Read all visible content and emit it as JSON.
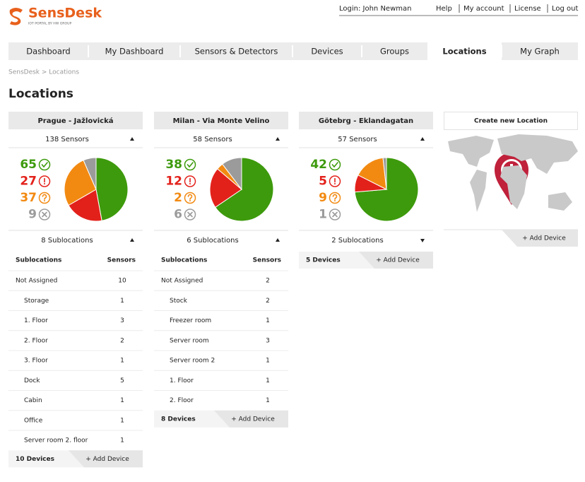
{
  "header": {
    "logo": "SensDesk",
    "tagline": "IOT PORTAL BY HW GROUP",
    "login": "Login: John Newman",
    "links": [
      "Help",
      "My account",
      "License",
      "Log out"
    ]
  },
  "nav": {
    "tabs": [
      "Dashboard",
      "My Dashboard",
      "Sensors & Detectors",
      "Devices",
      "Groups",
      "Locations",
      "My Graph"
    ],
    "active": 5
  },
  "breadcrumb": "SensDesk > Locations",
  "title": "Locations",
  "locations": [
    {
      "name": "Prague - Jažlovická",
      "sensors": "138 Sensors",
      "counts": [
        {
          "value": 65,
          "color": "#3d9a0c"
        },
        {
          "value": 27,
          "color": "#e3211b"
        },
        {
          "value": 37,
          "color": "#f28a12"
        },
        {
          "value": 9,
          "color": "#9b9b9b"
        }
      ],
      "sublocations": "8 Sublocations",
      "expanded": true,
      "columns": [
        "Sublocations",
        "Sensors"
      ],
      "rows": [
        [
          "Not Assigned",
          10
        ],
        [
          "Storage",
          1
        ],
        [
          "1. Floor",
          3
        ],
        [
          "2. Floor",
          2
        ],
        [
          "3. Floor",
          1
        ],
        [
          "Dock",
          5
        ],
        [
          "Cabin",
          1
        ],
        [
          "Office",
          1
        ],
        [
          "Server room 2. floor",
          1
        ]
      ],
      "devices": "10 Devices",
      "add": "+ Add Device"
    },
    {
      "name": "Milan - Via Monte Velino",
      "sensors": "58 Sensors",
      "counts": [
        {
          "value": 38,
          "color": "#3d9a0c"
        },
        {
          "value": 12,
          "color": "#e3211b"
        },
        {
          "value": 2,
          "color": "#f28a12"
        },
        {
          "value": 6,
          "color": "#9b9b9b"
        }
      ],
      "sublocations": "6 Sublocations",
      "expanded": true,
      "columns": [
        "Sublocations",
        "Sensors"
      ],
      "rows": [
        [
          "Not Assigned",
          2
        ],
        [
          "Stock",
          2
        ],
        [
          "Freezer room",
          1
        ],
        [
          "Server room",
          3
        ],
        [
          "Server room 2",
          1
        ],
        [
          "1. Floor",
          1
        ],
        [
          "2. Floor",
          1
        ]
      ],
      "devices": "8 Devices",
      "add": "+ Add Device"
    },
    {
      "name": "Götebrg - Eklandagatan",
      "sensors": "57 Sensors",
      "counts": [
        {
          "value": 42,
          "color": "#3d9a0c"
        },
        {
          "value": 5,
          "color": "#e3211b"
        },
        {
          "value": 9,
          "color": "#f28a12"
        },
        {
          "value": 1,
          "color": "#9b9b9b"
        }
      ],
      "sublocations": "2 Sublocations",
      "expanded": false,
      "columns": [],
      "rows": [],
      "devices": "5 Devices",
      "add": "+ Add Device"
    }
  ],
  "create": {
    "title": "Create new Location",
    "add": "+ Add Device"
  }
}
